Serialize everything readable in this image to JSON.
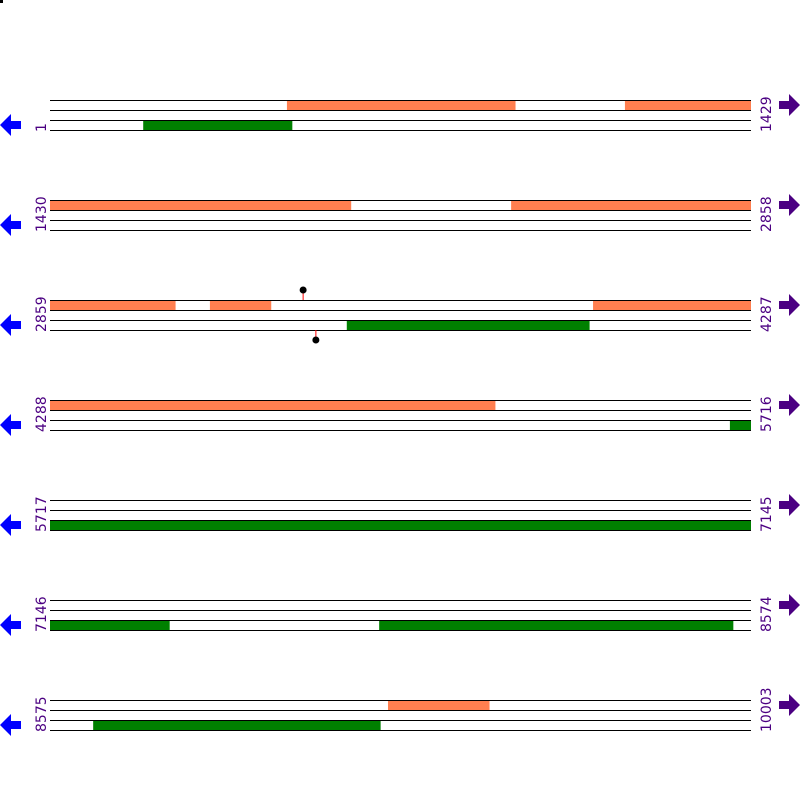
{
  "colors": {
    "forward_feature": "#ff7f50",
    "reverse_feature": "#008000",
    "left_arrow": "#0000ff",
    "right_arrow": "#4b0082",
    "label": "#4b0082",
    "marker_stem": "#ff0000",
    "marker_head": "#000000"
  },
  "icons": {
    "left": "arrow-left-icon",
    "right": "arrow-right-icon"
  },
  "rows": [
    {
      "start": "1",
      "end": "1429",
      "s": 1,
      "e": 1429,
      "features": [
        {
          "track": "top",
          "from": 484,
          "to": 949
        },
        {
          "track": "top",
          "from": 1173,
          "to": 1429
        },
        {
          "track": "bottom",
          "from": 191,
          "to": 494
        }
      ],
      "markers": []
    },
    {
      "start": "1430",
      "end": "2858",
      "s": 1430,
      "e": 2858,
      "features": [
        {
          "track": "top",
          "from": 1430,
          "to": 2043
        },
        {
          "track": "top",
          "from": 2370,
          "to": 2858
        }
      ],
      "markers": []
    },
    {
      "start": "2859",
      "end": "4287",
      "s": 2859,
      "e": 4287,
      "features": [
        {
          "track": "top",
          "from": 2859,
          "to": 3114
        },
        {
          "track": "top",
          "from": 3185,
          "to": 3309
        },
        {
          "track": "top",
          "from": 3966,
          "to": 4287
        },
        {
          "track": "bottom",
          "from": 3464,
          "to": 3958
        }
      ],
      "markers": [
        {
          "track": "top",
          "pos": 3375
        },
        {
          "track": "bottom",
          "pos": 3401
        }
      ]
    },
    {
      "start": "4288",
      "end": "5716",
      "s": 4288,
      "e": 5716,
      "features": [
        {
          "track": "top",
          "from": 4288,
          "to": 5195
        },
        {
          "track": "bottom",
          "from": 5674,
          "to": 5716
        }
      ],
      "markers": []
    },
    {
      "start": "5717",
      "end": "7145",
      "s": 5717,
      "e": 7145,
      "features": [
        {
          "track": "bottom",
          "from": 5717,
          "to": 7145
        }
      ],
      "markers": []
    },
    {
      "start": "7146",
      "end": "8574",
      "s": 7146,
      "e": 8574,
      "features": [
        {
          "track": "bottom",
          "from": 7146,
          "to": 7389
        },
        {
          "track": "bottom",
          "from": 7817,
          "to": 8538
        }
      ],
      "markers": []
    },
    {
      "start": "8575",
      "end": "10003",
      "s": 8575,
      "e": 10003,
      "features": [
        {
          "track": "top",
          "from": 9264,
          "to": 9470
        },
        {
          "track": "bottom",
          "from": 8663,
          "to": 9248
        }
      ],
      "markers": []
    }
  ]
}
